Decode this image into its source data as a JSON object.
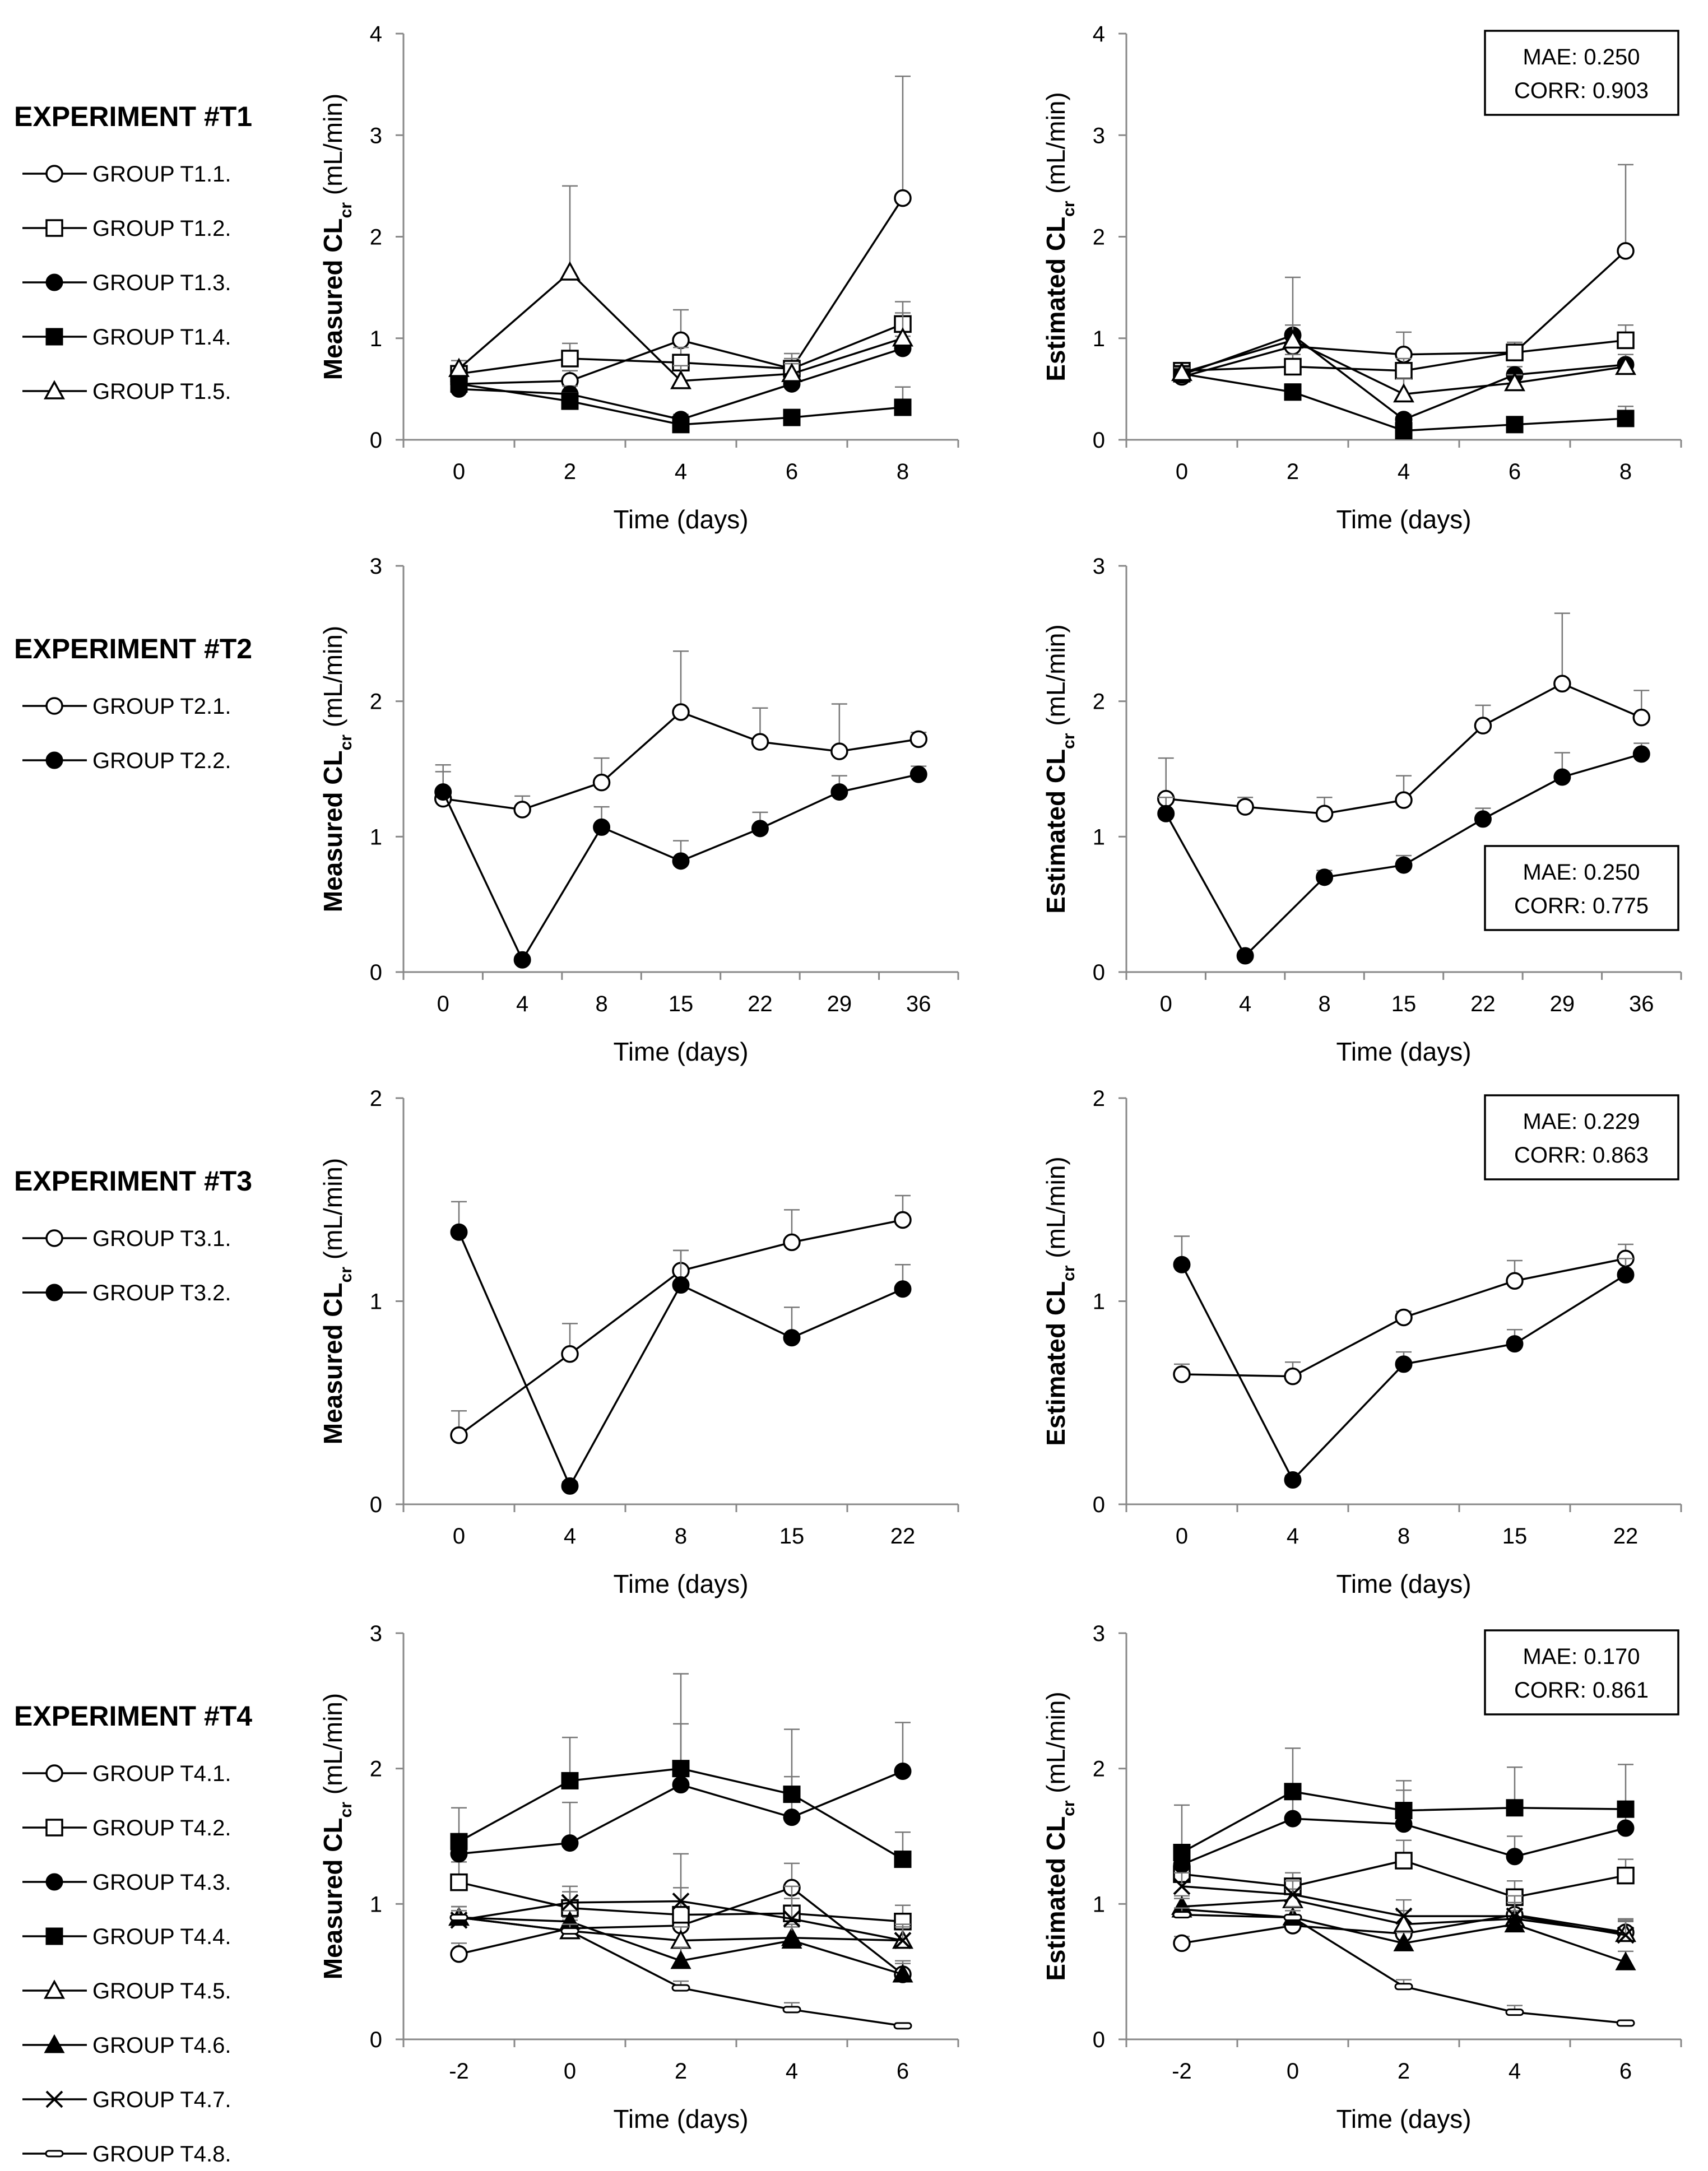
{
  "y_label_subscript": "cr",
  "y_label_unit": " (mL/min)",
  "chart_data": [
    {
      "type": "line",
      "experiment": "EXPERIMENT #T1",
      "categories": [
        "0",
        "2",
        "4",
        "6",
        "8"
      ],
      "xlabel": "Time (days)",
      "ylim": [
        0,
        4
      ],
      "yticks": [
        "0",
        "1",
        "2",
        "3",
        "4"
      ],
      "legend": [
        {
          "name": "GROUP T1.1.",
          "marker": "circle-open"
        },
        {
          "name": "GROUP T1.2.",
          "marker": "square-open"
        },
        {
          "name": "GROUP T1.3.",
          "marker": "circle-filled"
        },
        {
          "name": "GROUP T1.4.",
          "marker": "square-filled"
        },
        {
          "name": "GROUP T1.5.",
          "marker": "triangle-open"
        }
      ],
      "panels": [
        {
          "ylabel_prefix": "Measured CL",
          "mae": "",
          "corr": "",
          "series": [
            {
              "name": "GROUP T1.1.",
              "marker": "circle-open",
              "values": [
                0.55,
                0.58,
                0.98,
                0.7,
                2.38
              ],
              "err": [
                0.08,
                0.1,
                0.3,
                0.15,
                1.2
              ]
            },
            {
              "name": "GROUP T1.2.",
              "marker": "square-open",
              "values": [
                0.65,
                0.8,
                0.76,
                0.7,
                1.14
              ],
              "err": [
                0.08,
                0.15,
                0.15,
                0.1,
                0.22
              ]
            },
            {
              "name": "GROUP T1.3.",
              "marker": "circle-filled",
              "values": [
                0.5,
                0.45,
                0.2,
                0.55,
                0.9
              ],
              "err": [
                0.05,
                0.08,
                0.05,
                0.1,
                0.12
              ]
            },
            {
              "name": "GROUP T1.4.",
              "marker": "square-filled",
              "values": [
                0.55,
                0.38,
                0.15,
                0.22,
                0.32
              ],
              "err": [
                0.05,
                0.08,
                0.05,
                0.05,
                0.2
              ]
            },
            {
              "name": "GROUP T1.5.",
              "marker": "triangle-open",
              "values": [
                0.7,
                1.65,
                0.58,
                0.65,
                1.0
              ],
              "err": [
                0.08,
                0.85,
                0.15,
                0.1,
                0.25
              ]
            }
          ]
        },
        {
          "ylabel_prefix": "Estimated CL",
          "mae": "MAE: 0.250",
          "corr": "CORR: 0.903",
          "series": [
            {
              "name": "GROUP T1.1.",
              "marker": "circle-open",
              "values": [
                0.62,
                0.92,
                0.84,
                0.86,
                1.86
              ],
              "err": [
                0.05,
                0.15,
                0.22,
                0.1,
                0.85
              ]
            },
            {
              "name": "GROUP T1.2.",
              "marker": "square-open",
              "values": [
                0.68,
                0.72,
                0.68,
                0.86,
                0.98
              ],
              "err": [
                0.05,
                0.12,
                0.12,
                0.08,
                0.15
              ]
            },
            {
              "name": "GROUP T1.3.",
              "marker": "circle-filled",
              "values": [
                0.64,
                1.03,
                0.2,
                0.64,
                0.74
              ],
              "err": [
                0.05,
                0.1,
                0.05,
                0.08,
                0.1
              ]
            },
            {
              "name": "GROUP T1.4.",
              "marker": "square-filled",
              "values": [
                0.65,
                0.47,
                0.09,
                0.15,
                0.21
              ],
              "err": [
                0.05,
                0.08,
                0.04,
                0.04,
                0.12
              ]
            },
            {
              "name": "GROUP T1.5.",
              "marker": "triangle-open",
              "values": [
                0.66,
                0.98,
                0.45,
                0.56,
                0.72
              ],
              "err": [
                0.05,
                0.62,
                0.15,
                0.08,
                0.12
              ]
            }
          ]
        }
      ]
    },
    {
      "type": "line",
      "experiment": "EXPERIMENT #T2",
      "categories": [
        "0",
        "4",
        "8",
        "15",
        "22",
        "29",
        "36"
      ],
      "xlabel": "Time (days)",
      "ylim": [
        0,
        3
      ],
      "yticks": [
        "0",
        "1",
        "2",
        "3"
      ],
      "legend": [
        {
          "name": "GROUP T2.1.",
          "marker": "circle-open"
        },
        {
          "name": "GROUP T2.2.",
          "marker": "circle-filled"
        }
      ],
      "panels": [
        {
          "ylabel_prefix": "Measured CL",
          "mae": "",
          "corr": "",
          "series": [
            {
              "name": "GROUP T2.1.",
              "marker": "circle-open",
              "values": [
                1.28,
                1.2,
                1.4,
                1.92,
                1.7,
                1.63,
                1.72
              ],
              "err": [
                0.25,
                0.1,
                0.18,
                0.45,
                0.25,
                0.35,
                0.05
              ]
            },
            {
              "name": "GROUP T2.2.",
              "marker": "circle-filled",
              "values": [
                1.33,
                0.09,
                1.07,
                0.82,
                1.06,
                1.33,
                1.46
              ],
              "err": [
                0.15,
                0.02,
                0.15,
                0.15,
                0.12,
                0.12,
                0.06
              ]
            }
          ]
        },
        {
          "ylabel_prefix": "Estimated CL",
          "mae": "MAE: 0.250",
          "corr": "CORR: 0.775",
          "series": [
            {
              "name": "GROUP T2.1.",
              "marker": "circle-open",
              "values": [
                1.28,
                1.22,
                1.17,
                1.27,
                1.82,
                2.13,
                1.88
              ],
              "err": [
                0.3,
                0.07,
                0.12,
                0.18,
                0.15,
                0.52,
                0.2
              ]
            },
            {
              "name": "GROUP T2.2.",
              "marker": "circle-filled",
              "values": [
                1.17,
                0.12,
                0.7,
                0.79,
                1.13,
                1.44,
                1.61
              ],
              "err": [
                0.12,
                0.02,
                0.05,
                0.07,
                0.08,
                0.18,
                0.08
              ]
            }
          ]
        }
      ]
    },
    {
      "type": "line",
      "experiment": "EXPERIMENT #T3",
      "categories": [
        "0",
        "4",
        "8",
        "15",
        "22"
      ],
      "xlabel": "Time (days)",
      "ylim": [
        0,
        2
      ],
      "yticks": [
        "0",
        "1",
        "2"
      ],
      "legend": [
        {
          "name": "GROUP T3.1.",
          "marker": "circle-open"
        },
        {
          "name": "GROUP T3.2.",
          "marker": "circle-filled"
        }
      ],
      "panels": [
        {
          "ylabel_prefix": "Measured CL",
          "mae": "",
          "corr": "",
          "series": [
            {
              "name": "GROUP T3.1.",
              "marker": "circle-open",
              "values": [
                0.34,
                0.74,
                1.15,
                1.29,
                1.4
              ],
              "err": [
                0.12,
                0.15,
                0.1,
                0.16,
                0.12
              ]
            },
            {
              "name": "GROUP T3.2.",
              "marker": "circle-filled",
              "values": [
                1.34,
                0.09,
                1.08,
                0.82,
                1.06
              ],
              "err": [
                0.15,
                0.02,
                0.17,
                0.15,
                0.12
              ]
            }
          ]
        },
        {
          "ylabel_prefix": "Estimated CL",
          "mae": "MAE: 0.229",
          "corr": "CORR: 0.863",
          "series": [
            {
              "name": "GROUP T3.1.",
              "marker": "circle-open",
              "values": [
                0.64,
                0.63,
                0.92,
                1.1,
                1.21
              ],
              "err": [
                0.05,
                0.07,
                0.03,
                0.1,
                0.07
              ]
            },
            {
              "name": "GROUP T3.2.",
              "marker": "circle-filled",
              "values": [
                1.18,
                0.12,
                0.69,
                0.79,
                1.13
              ],
              "err": [
                0.14,
                0.02,
                0.06,
                0.07,
                0.08
              ]
            }
          ]
        }
      ]
    },
    {
      "type": "line",
      "experiment": "EXPERIMENT #T4",
      "categories": [
        "-2",
        "0",
        "2",
        "4",
        "6"
      ],
      "xlabel": "Time (days)",
      "ylim": [
        0,
        3
      ],
      "yticks": [
        "0",
        "1",
        "2",
        "3"
      ],
      "legend": [
        {
          "name": "GROUP T4.1.",
          "marker": "circle-open"
        },
        {
          "name": "GROUP T4.2.",
          "marker": "square-open"
        },
        {
          "name": "GROUP T4.3.",
          "marker": "circle-filled"
        },
        {
          "name": "GROUP T4.4.",
          "marker": "square-filled"
        },
        {
          "name": "GROUP T4.5.",
          "marker": "triangle-open"
        },
        {
          "name": "GROUP T4.6.",
          "marker": "triangle-filled"
        },
        {
          "name": "GROUP T4.7.",
          "marker": "cross"
        },
        {
          "name": "GROUP T4.8.",
          "marker": "dash"
        }
      ],
      "panels": [
        {
          "ylabel_prefix": "Measured CL",
          "mae": "",
          "corr": "",
          "series": [
            {
              "name": "GROUP T4.1.",
              "marker": "circle-open",
              "values": [
                0.63,
                0.82,
                0.84,
                1.12,
                0.48
              ],
              "err": [
                0.08,
                0.08,
                0.12,
                0.18,
                0.1
              ]
            },
            {
              "name": "GROUP T4.2.",
              "marker": "square-open",
              "values": [
                1.16,
                0.97,
                0.92,
                0.93,
                0.87
              ],
              "err": [
                0.15,
                0.12,
                0.2,
                0.2,
                0.12
              ]
            },
            {
              "name": "GROUP T4.3.",
              "marker": "circle-filled",
              "values": [
                1.37,
                1.45,
                1.88,
                1.64,
                1.98
              ],
              "err": [
                0.12,
                0.3,
                0.45,
                0.3,
                0.36
              ]
            },
            {
              "name": "GROUP T4.4.",
              "marker": "square-filled",
              "values": [
                1.46,
                1.91,
                2.0,
                1.81,
                1.33
              ],
              "err": [
                0.25,
                0.32,
                0.7,
                0.48,
                0.2
              ]
            },
            {
              "name": "GROUP T4.5.",
              "marker": "triangle-open",
              "values": [
                0.9,
                0.8,
                0.73,
                0.75,
                0.73
              ],
              "err": [
                0.08,
                0.08,
                0.1,
                0.1,
                0.1
              ]
            },
            {
              "name": "GROUP T4.6.",
              "marker": "triangle-filled",
              "values": [
                0.9,
                0.87,
                0.58,
                0.73,
                0.48
              ],
              "err": [
                0.08,
                0.08,
                0.1,
                0.1,
                0.08
              ]
            },
            {
              "name": "GROUP T4.7.",
              "marker": "cross",
              "values": [
                0.88,
                1.01,
                1.02,
                0.89,
                0.73
              ],
              "err": [
                0.1,
                0.12,
                0.35,
                0.15,
                0.12
              ]
            },
            {
              "name": "GROUP T4.8.",
              "marker": "dash",
              "values": [
                0.9,
                0.8,
                0.38,
                0.22,
                0.1
              ],
              "err": [
                0.05,
                0.05,
                0.05,
                0.05,
                0.02
              ]
            }
          ]
        },
        {
          "ylabel_prefix": "Estimated CL",
          "mae": "MAE: 0.170",
          "corr": "CORR: 0.861",
          "series": [
            {
              "name": "GROUP T4.1.",
              "marker": "circle-open",
              "values": [
                0.71,
                0.84,
                0.78,
                0.92,
                0.79
              ],
              "err": [
                0.05,
                0.05,
                0.08,
                0.1,
                0.08
              ]
            },
            {
              "name": "GROUP T4.2.",
              "marker": "square-open",
              "values": [
                1.22,
                1.13,
                1.32,
                1.05,
                1.21
              ],
              "err": [
                0.12,
                0.1,
                0.15,
                0.12,
                0.12
              ]
            },
            {
              "name": "GROUP T4.3.",
              "marker": "circle-filled",
              "values": [
                1.29,
                1.63,
                1.59,
                1.35,
                1.56
              ],
              "err": [
                0.12,
                0.15,
                0.25,
                0.15,
                0.18
              ]
            },
            {
              "name": "GROUP T4.4.",
              "marker": "square-filled",
              "values": [
                1.38,
                1.83,
                1.69,
                1.71,
                1.7
              ],
              "err": [
                0.35,
                0.32,
                0.22,
                0.3,
                0.33
              ]
            },
            {
              "name": "GROUP T4.5.",
              "marker": "triangle-open",
              "values": [
                0.98,
                1.03,
                0.85,
                0.89,
                0.78
              ],
              "err": [
                0.08,
                0.08,
                0.1,
                0.12,
                0.1
              ]
            },
            {
              "name": "GROUP T4.6.",
              "marker": "triangle-filled",
              "values": [
                0.96,
                0.9,
                0.71,
                0.85,
                0.57
              ],
              "err": [
                0.08,
                0.08,
                0.08,
                0.1,
                0.08
              ]
            },
            {
              "name": "GROUP T4.7.",
              "marker": "cross",
              "values": [
                1.13,
                1.07,
                0.91,
                0.91,
                0.77
              ],
              "err": [
                0.1,
                0.1,
                0.12,
                0.15,
                0.12
              ]
            },
            {
              "name": "GROUP T4.8.",
              "marker": "dash",
              "values": [
                0.92,
                0.9,
                0.39,
                0.2,
                0.12
              ],
              "err": [
                0.05,
                0.05,
                0.05,
                0.05,
                0.02
              ]
            }
          ]
        }
      ]
    }
  ]
}
